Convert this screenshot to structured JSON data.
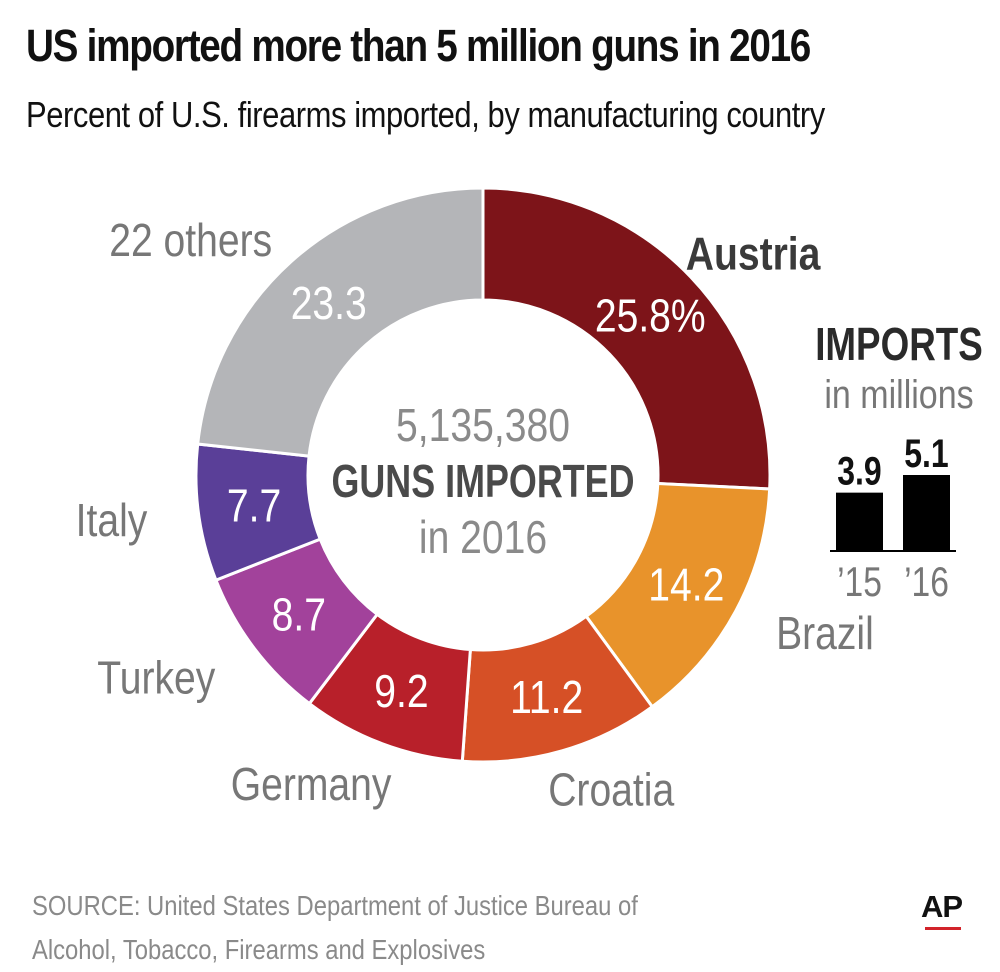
{
  "title": "US imported more than 5 million guns in 2016",
  "subtitle": "Percent of U.S. firearms imported, by manufacturing country",
  "center": {
    "count": "5,135,380",
    "label": "GUNS IMPORTED",
    "year_text": "in 2016"
  },
  "source": {
    "line1": "SOURCE: United States Department of Justice Bureau of",
    "line2": "Alcohol, Tobacco, Firearms and Explosives"
  },
  "logo": "AP",
  "colors": {
    "Austria": "#7d1419",
    "Brazil": "#e8932b",
    "Croatia": "#d65026",
    "Germany": "#b8202a",
    "Turkey": "#a2429b",
    "Italy": "#5a3f98",
    "22 others": "#b4b5b8",
    "bars": "#000000"
  },
  "chart_data": [
    {
      "type": "pie",
      "title": "Percent of U.S. firearms imported, by manufacturing country",
      "donut": true,
      "slices": [
        {
          "label": "Austria",
          "value": 25.8,
          "value_text": "25.8%"
        },
        {
          "label": "Brazil",
          "value": 14.2,
          "value_text": "14.2"
        },
        {
          "label": "Croatia",
          "value": 11.2,
          "value_text": "11.2"
        },
        {
          "label": "Germany",
          "value": 9.2,
          "value_text": "9.2"
        },
        {
          "label": "Turkey",
          "value": 8.7,
          "value_text": "8.7"
        },
        {
          "label": "Italy",
          "value": 7.7,
          "value_text": "7.7"
        },
        {
          "label": "22 others",
          "value": 23.3,
          "value_text": "23.3"
        }
      ]
    },
    {
      "type": "bar",
      "title": "IMPORTS",
      "subtitle": "in millions",
      "categories": [
        "’15",
        "’16"
      ],
      "values": [
        3.9,
        5.1
      ],
      "value_labels": [
        "3.9",
        "5.1"
      ]
    }
  ]
}
